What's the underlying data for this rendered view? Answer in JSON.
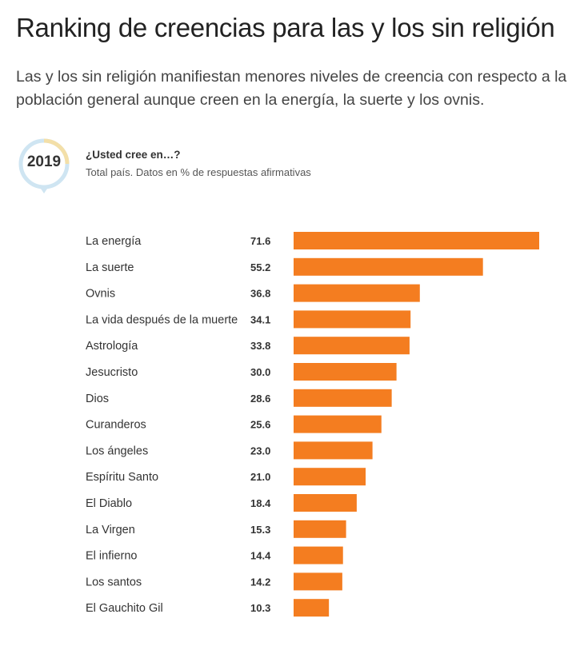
{
  "header": {
    "title": "Ranking de creencias para las y los sin religión",
    "subtitle": "Las y los sin religión manifiestan menores niveles de creencia con respecto a la población general aunque creen en la energía, la suerte y los ovnis."
  },
  "badge": {
    "year": "2019"
  },
  "question": {
    "title": "¿Usted cree en…?",
    "subtitle": "Total país. Datos en % de respuestas afirmativas"
  },
  "colors": {
    "bar": "#f47d20",
    "badge_ring_a": "#f3dfa8",
    "badge_ring_b": "#cfe5f2"
  },
  "chart_data": {
    "type": "bar",
    "orientation": "horizontal",
    "categories": [
      "La energía",
      "La suerte",
      "Ovnis",
      "La vida después de la muerte",
      "Astrología",
      "Jesucristo",
      "Dios",
      "Curanderos",
      "Los ángeles",
      "Espíritu Santo",
      "El Diablo",
      "La Virgen",
      "El infierno",
      "Los santos",
      "El Gauchito Gil"
    ],
    "values": [
      71.6,
      55.2,
      36.8,
      34.1,
      33.8,
      30.0,
      28.6,
      25.6,
      23.0,
      21.0,
      18.4,
      15.3,
      14.4,
      14.2,
      10.3
    ],
    "value_labels": [
      "71.6",
      "55.2",
      "36.8",
      "34.1",
      "33.8",
      "30.0",
      "28.6",
      "25.6",
      "23.0",
      "21.0",
      "18.4",
      "15.3",
      "14.4",
      "14.2",
      "10.3"
    ],
    "xlim": [
      0,
      71.6
    ],
    "grid": false,
    "legend": "none"
  }
}
